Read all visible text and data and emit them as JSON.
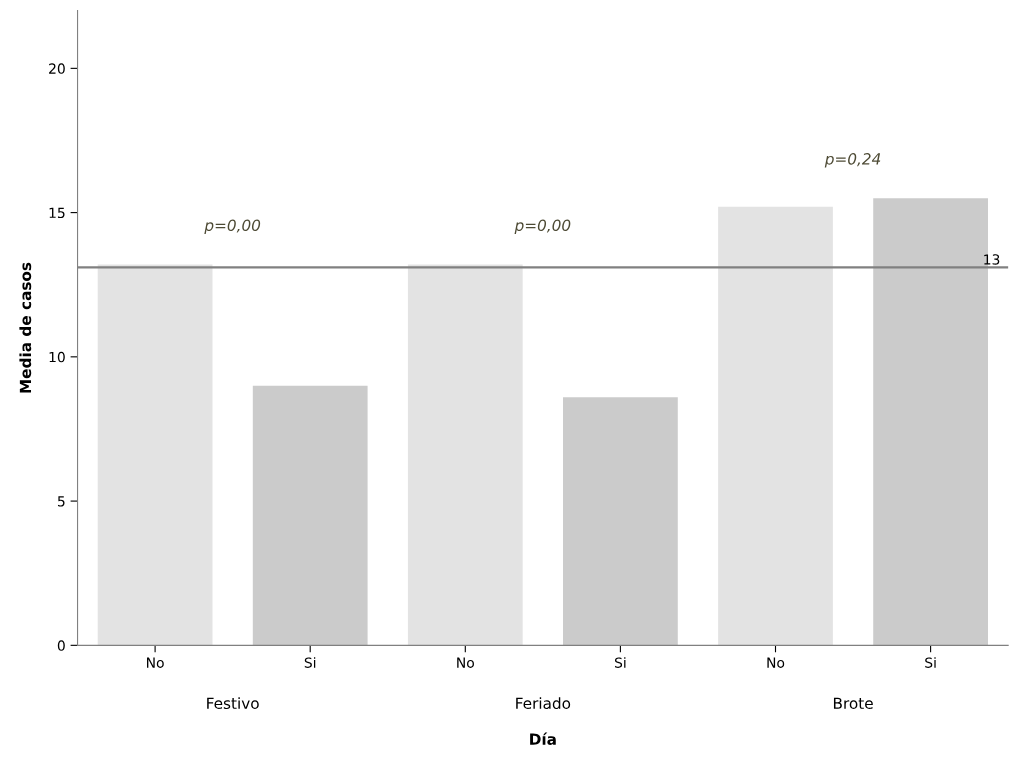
{
  "chart_data": {
    "type": "bar",
    "xlabel": "Día",
    "ylabel": "Media de casos",
    "categories": [
      "No",
      "Si",
      "No",
      "Si",
      "No",
      "Si"
    ],
    "values": [
      13.2,
      9.0,
      13.2,
      8.6,
      15.2,
      15.5
    ],
    "colors": [
      "#e3e3e3",
      "#cbcbcb",
      "#e3e3e3",
      "#cbcbcb",
      "#e3e3e3",
      "#cbcbcb"
    ],
    "ylim": [
      0,
      22
    ],
    "yticks": [
      0,
      5,
      10,
      15,
      20
    ],
    "grid": false,
    "legend": false,
    "ref_lines": [
      {
        "axis": "y",
        "value": 13.1,
        "label": "13",
        "color": "#808080"
      }
    ],
    "annotations": [
      "Festivo",
      "Feriado",
      "Brote",
      "p=0,00",
      "p=0,00",
      "p=0,24"
    ]
  }
}
